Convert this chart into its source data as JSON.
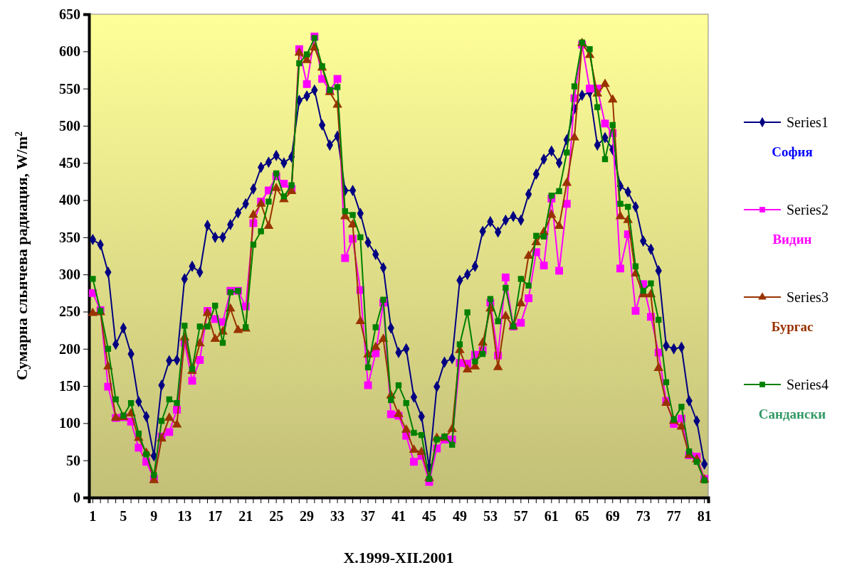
{
  "chart_data": {
    "type": "line",
    "xlabel": "X.1999-XII.2001",
    "ylabel": "Сумарна сльнчева радиация, W/m$^{2}$",
    "categories": [
      "1",
      null,
      null,
      null,
      "5",
      null,
      null,
      null,
      "9",
      null,
      null,
      null,
      "13",
      null,
      null,
      null,
      "17",
      null,
      null,
      null,
      "21",
      null,
      null,
      null,
      "25",
      null,
      null,
      null,
      "29",
      null,
      null,
      null,
      "33",
      null,
      null,
      null,
      "37",
      null,
      null,
      null,
      "41",
      null,
      null,
      null,
      "45",
      null,
      null,
      null,
      "49",
      null,
      null,
      null,
      "53",
      null,
      null,
      null,
      "57",
      null,
      null,
      null,
      "61",
      null,
      null,
      null,
      "65",
      null,
      null,
      null,
      "69",
      null,
      null,
      null,
      "73",
      null,
      null,
      null,
      "77",
      null,
      null,
      null,
      "81"
    ],
    "ylim": [
      0,
      650
    ],
    "yticks": [
      0,
      50,
      100,
      150,
      200,
      250,
      300,
      350,
      400,
      450,
      500,
      550,
      600,
      650
    ],
    "grid": false,
    "legend": "right",
    "annotations": [
      "София",
      "Видин",
      "Бургас",
      "Сандански"
    ],
    "series": [
      {
        "name": "Series1",
        "color": "#000080",
        "marker": "diamond",
        "values": [
          347,
          340,
          303,
          206,
          228,
          193,
          129,
          109,
          56,
          151,
          184,
          185,
          294,
          311,
          303,
          366,
          350,
          350,
          367,
          383,
          395,
          415,
          444,
          451,
          460,
          450,
          458,
          534,
          540,
          548,
          501,
          474,
          486,
          413,
          413,
          382,
          343,
          327,
          309,
          228,
          195,
          200,
          135,
          109,
          41,
          149,
          182,
          187,
          292,
          300,
          311,
          358,
          371,
          357,
          373,
          378,
          373,
          408,
          435,
          455,
          466,
          450,
          481,
          523,
          541,
          545,
          474,
          484,
          468,
          419,
          411,
          391,
          345,
          334,
          305,
          204,
          200,
          202,
          130,
          103,
          45
        ]
      },
      {
        "name": "Series2",
        "color": "#ff00ff",
        "marker": "square",
        "values": [
          275,
          252,
          149,
          107,
          108,
          102,
          67,
          48,
          25,
          82,
          88,
          118,
          208,
          157,
          185,
          251,
          240,
          236,
          278,
          278,
          257,
          369,
          398,
          413,
          432,
          422,
          415,
          603,
          556,
          620,
          563,
          547,
          563,
          322,
          348,
          279,
          151,
          194,
          262,
          112,
          110,
          83,
          48,
          56,
          21,
          66,
          78,
          78,
          181,
          180,
          192,
          198,
          262,
          191,
          296,
          230,
          235,
          268,
          330,
          312,
          402,
          305,
          395,
          537,
          609,
          550,
          550,
          503,
          490,
          308,
          354,
          251,
          287,
          243,
          195,
          130,
          99,
          106,
          57,
          55,
          25
        ]
      },
      {
        "name": "Series3",
        "color": "#993300",
        "marker": "triangle",
        "values": [
          248,
          249,
          176,
          107,
          108,
          113,
          80,
          60,
          23,
          79,
          107,
          98,
          215,
          170,
          207,
          248,
          213,
          223,
          254,
          225,
          227,
          380,
          395,
          365,
          416,
          401,
          412,
          598,
          588,
          605,
          578,
          545,
          528,
          378,
          367,
          237,
          192,
          202,
          213,
          137,
          112,
          91,
          64,
          61,
          26,
          80,
          80,
          92,
          198,
          172,
          176,
          208,
          254,
          175,
          244,
          230,
          261,
          325,
          343,
          357,
          380,
          365,
          423,
          484,
          611,
          595,
          543,
          556,
          535,
          378,
          373,
          301,
          273,
          273,
          174,
          127,
          103,
          95,
          57,
          51,
          24
        ]
      },
      {
        "name": "Series4",
        "color": "#008000",
        "marker": "square",
        "values": [
          294,
          251,
          200,
          132,
          110,
          127,
          86,
          58,
          30,
          103,
          132,
          127,
          231,
          173,
          230,
          230,
          258,
          208,
          276,
          278,
          229,
          340,
          358,
          398,
          436,
          405,
          420,
          584,
          596,
          618,
          580,
          548,
          552,
          385,
          380,
          350,
          175,
          229,
          266,
          131,
          151,
          127,
          87,
          84,
          25,
          78,
          82,
          71,
          206,
          249,
          183,
          193,
          267,
          237,
          282,
          230,
          294,
          285,
          352,
          351,
          406,
          412,
          464,
          553,
          612,
          603,
          525,
          455,
          501,
          395,
          391,
          311,
          278,
          288,
          239,
          155,
          105,
          122,
          62,
          48,
          23
        ]
      }
    ]
  }
}
